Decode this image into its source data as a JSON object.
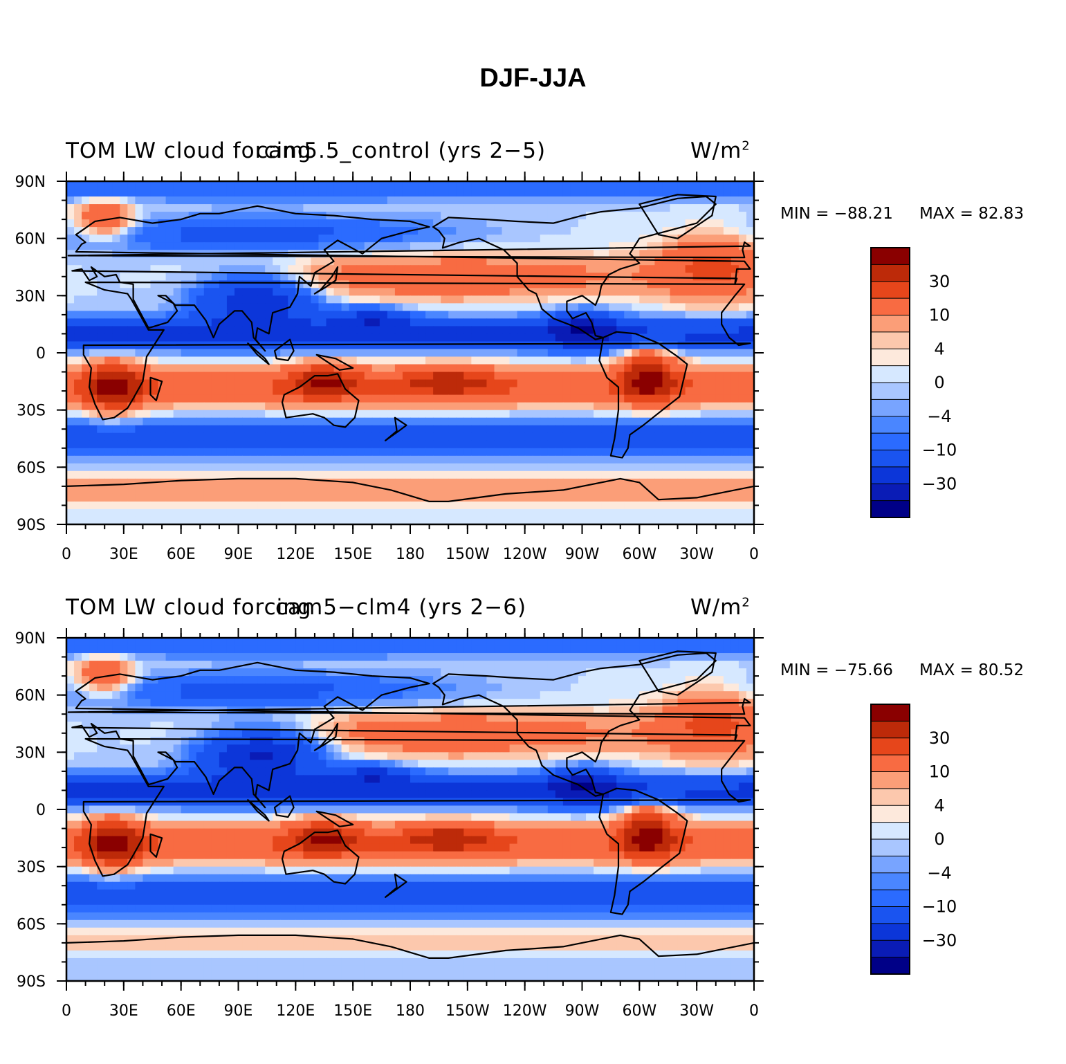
{
  "figure": {
    "title": "DJF-JJA"
  },
  "colorbar": {
    "colors": [
      "#000087",
      "#0a1cb6",
      "#0c36d9",
      "#1a54f0",
      "#2b6bff",
      "#4a86ff",
      "#78a4ff",
      "#a9c6ff",
      "#d6e8ff",
      "#fde9dc",
      "#fcc8ad",
      "#fb9e78",
      "#f86b42",
      "#e6461b",
      "#bd2a09",
      "#8a0000"
    ],
    "labels": [
      "30",
      "10",
      "4",
      "0",
      "−4",
      "−10",
      "−30"
    ]
  },
  "chart_data": [
    {
      "type": "heatmap",
      "left_title": "TOM LW cloud forcing",
      "center_title": "cam5.5_control (yrs 2−5)",
      "units_base": "W/m",
      "units_exp": "2",
      "min_label": "MIN = −88.21",
      "max_label": "MAX =   82.83",
      "min": -88.21,
      "max": 82.83,
      "x_ticks": [
        "0",
        "30E",
        "60E",
        "90E",
        "120E",
        "150E",
        "180",
        "150W",
        "120W",
        "90W",
        "60W",
        "30W",
        "0"
      ],
      "y_ticks": [
        "90N",
        "60N",
        "30N",
        "0",
        "30S",
        "60S",
        "90S"
      ],
      "xlim": [
        0,
        360
      ],
      "ylim": [
        -90,
        90
      ],
      "contour_levels": [
        -50,
        -40,
        -30,
        -20,
        -10,
        -6,
        -4,
        -2,
        0,
        2,
        4,
        6,
        10,
        20,
        30,
        40
      ]
    },
    {
      "type": "heatmap",
      "left_title": "TOM LW cloud forcing",
      "center_title": "cam5−clm4 (yrs 2−6)",
      "units_base": "W/m",
      "units_exp": "2",
      "min_label": "MIN = −75.66",
      "max_label": "MAX =   80.52",
      "min": -75.66,
      "max": 80.52,
      "x_ticks": [
        "0",
        "30E",
        "60E",
        "90E",
        "120E",
        "150E",
        "180",
        "150W",
        "120W",
        "90W",
        "60W",
        "30W",
        "0"
      ],
      "y_ticks": [
        "90N",
        "60N",
        "30N",
        "0",
        "30S",
        "60S",
        "90S"
      ],
      "xlim": [
        0,
        360
      ],
      "ylim": [
        -90,
        90
      ],
      "contour_levels": [
        -50,
        -40,
        -30,
        -20,
        -10,
        -6,
        -4,
        -2,
        0,
        2,
        4,
        6,
        10,
        20,
        30,
        40
      ]
    }
  ]
}
